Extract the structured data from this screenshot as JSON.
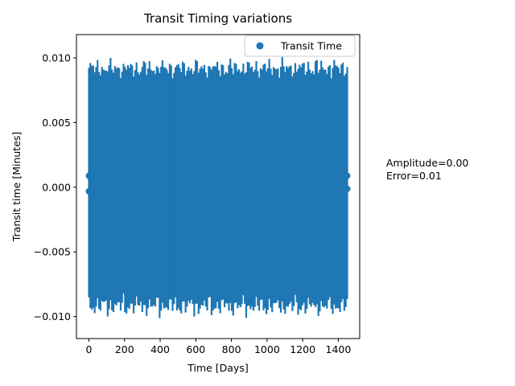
{
  "chart_data": {
    "type": "scatter",
    "title": "Transit Timing variations",
    "xlabel": "Time [Days]",
    "ylabel": "Transit time [Minutes]",
    "xlim": [
      -70,
      1520
    ],
    "ylim": [
      -0.0117,
      0.0118
    ],
    "xticks": [
      0,
      200,
      400,
      600,
      800,
      1000,
      1200,
      1400
    ],
    "xtick_labels": [
      "0",
      "200",
      "400",
      "600",
      "800",
      "1000",
      "1200",
      "1400"
    ],
    "yticks": [
      -0.01,
      -0.005,
      0.0,
      0.005,
      0.01
    ],
    "ytick_labels": [
      "−0.010",
      "−0.005",
      "0.000",
      "0.005",
      "0.010"
    ],
    "series": [
      {
        "name": "Transit Time",
        "color": "#1f77b4",
        "marker": "circle",
        "x_start": 0,
        "x_end": 1450,
        "n_points": 180,
        "center_value": 0.0,
        "error": 0.0092,
        "visible_points": [
          [
            0,
            0.00088
          ],
          [
            0,
            -0.00032
          ],
          [
            1450,
            0.00088
          ],
          [
            1450,
            -0.00012
          ]
        ]
      }
    ],
    "legend": {
      "position": "top-right",
      "entries": [
        "Transit Time"
      ]
    },
    "grid": false
  },
  "annotations": {
    "amplitude": "Amplitude=0.00",
    "error": "Error=0.01"
  }
}
